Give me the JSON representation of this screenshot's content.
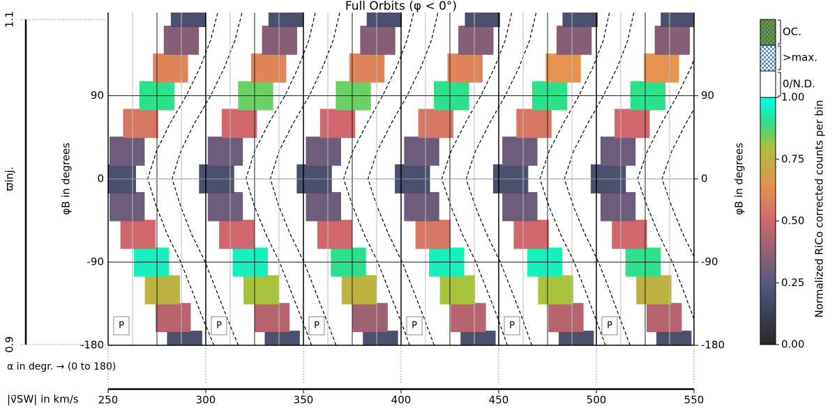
{
  "chart_data": {
    "type": "heatmap",
    "title": "Full Orbits (φ < 0°)",
    "y_label": "φB in degrees",
    "y2_label": "φB in degrees",
    "ylim": [
      -180,
      180
    ],
    "yticks": [
      -180,
      -90,
      0,
      90
    ],
    "alpha_label": "α in degr. → (0 to 180)",
    "alpha_lim": [
      0,
      180
    ],
    "x_label": "|v⃗SW| in km/s",
    "xlim": [
      250,
      550
    ],
    "xticks": [
      250,
      300,
      350,
      400,
      450,
      500,
      550
    ],
    "left_label": "ϖinj.",
    "left_lim": [
      0.9,
      1.1
    ],
    "left_ticks": [
      0.9,
      1.1
    ],
    "phi": [
      -180,
      -150,
      -120,
      -90,
      -60,
      -30,
      0,
      30,
      60,
      90,
      120,
      150,
      180
    ],
    "panels": [
      {
        "annotation": "P",
        "ridge_alpha": [
          141,
          120,
          100,
          80,
          55,
          35,
          19,
          35,
          60,
          90,
          115,
          135,
          148
        ],
        "values": [
          0.2,
          0.45,
          0.75,
          0.95,
          0.5,
          0.3,
          0.2,
          0.3,
          0.55,
          0.9,
          0.6,
          0.35,
          0.2
        ]
      },
      {
        "annotation": "P",
        "ridge_alpha": [
          141,
          122,
          102,
          82,
          57,
          36,
          20,
          36,
          62,
          92,
          116,
          136,
          148
        ],
        "values": [
          0.2,
          0.45,
          0.8,
          0.95,
          0.5,
          0.3,
          0.2,
          0.3,
          0.5,
          0.85,
          0.6,
          0.35,
          0.2
        ]
      },
      {
        "annotation": "P",
        "ridge_alpha": [
          142,
          123,
          103,
          83,
          58,
          37,
          20,
          37,
          63,
          92,
          117,
          137,
          149
        ],
        "values": [
          0.2,
          0.4,
          0.75,
          0.9,
          0.5,
          0.3,
          0.2,
          0.3,
          0.5,
          0.85,
          0.6,
          0.35,
          0.2
        ]
      },
      {
        "annotation": "P",
        "ridge_alpha": [
          142,
          124,
          104,
          84,
          59,
          38,
          21,
          38,
          64,
          93,
          118,
          138,
          150
        ],
        "values": [
          0.2,
          0.45,
          0.8,
          0.95,
          0.55,
          0.3,
          0.2,
          0.3,
          0.55,
          0.9,
          0.6,
          0.35,
          0.2
        ]
      },
      {
        "annotation": "P",
        "ridge_alpha": [
          143,
          124,
          105,
          85,
          60,
          39,
          22,
          39,
          65,
          94,
          119,
          139,
          150
        ],
        "values": [
          0.2,
          0.45,
          0.8,
          0.95,
          0.5,
          0.3,
          0.2,
          0.3,
          0.55,
          0.9,
          0.65,
          0.35,
          0.2
        ]
      },
      {
        "annotation": "P",
        "ridge_alpha": [
          143,
          125,
          106,
          86,
          61,
          40,
          22,
          40,
          66,
          95,
          120,
          140,
          151
        ],
        "values": [
          0.2,
          0.45,
          0.75,
          0.9,
          0.5,
          0.3,
          0.2,
          0.3,
          0.5,
          0.9,
          0.65,
          0.35,
          0.2
        ]
      }
    ],
    "colorbar": {
      "label": "Normalized RiCo corrected counts per bin",
      "lim": [
        0,
        1
      ],
      "ticks": [
        {
          "value": 0,
          "label": "0.00"
        },
        {
          "value": 0.25,
          "label": "0.25"
        },
        {
          "value": 0.5,
          "label": "0.50"
        },
        {
          "value": 0.75,
          "label": "0.75"
        },
        {
          "value": 1,
          "label": "1.00"
        }
      ],
      "extra_labels": [
        "0/N.D.",
        ">max.",
        "OC."
      ]
    }
  }
}
